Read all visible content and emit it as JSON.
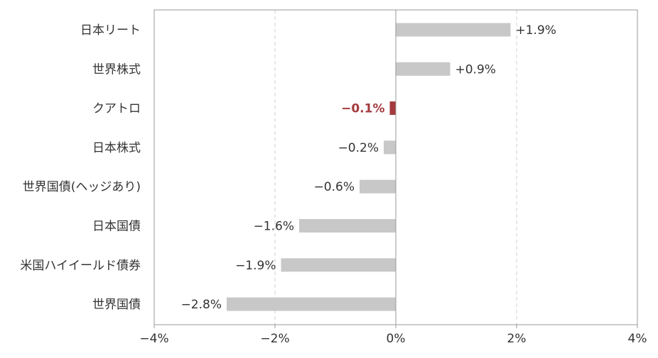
{
  "chart_data": {
    "type": "bar",
    "orientation": "horizontal",
    "categories": [
      "日本リート",
      "世界株式",
      "クアトロ",
      "日本株式",
      "世界国債(ヘッジあり)",
      "日本国債",
      "米国ハイイールド債券",
      "世界国債"
    ],
    "values": [
      1.9,
      0.9,
      -0.1,
      -0.2,
      -0.6,
      -1.6,
      -1.9,
      -2.8
    ],
    "value_labels": [
      "+1.9%",
      "+0.9%",
      "−0.1%",
      "−0.2%",
      "−0.6%",
      "−1.6%",
      "−1.9%",
      "−2.8%"
    ],
    "highlight_category": "クアトロ",
    "xlim": [
      -4,
      4
    ],
    "xticks": [
      -4,
      -2,
      0,
      2,
      4
    ],
    "xtick_labels": [
      "−4%",
      "−2%",
      "0%",
      "2%",
      "4%"
    ],
    "grid": "vertical dashed at ±2%",
    "legend": "none",
    "title": "",
    "xlabel": "",
    "ylabel": "",
    "colors": {
      "bar": "#c8c8c8",
      "highlight_bar": "#a33a3e",
      "highlight_text": "#a33a3e",
      "text": "#333333",
      "axis": "#999999",
      "grid": "#cfcfcf"
    }
  }
}
